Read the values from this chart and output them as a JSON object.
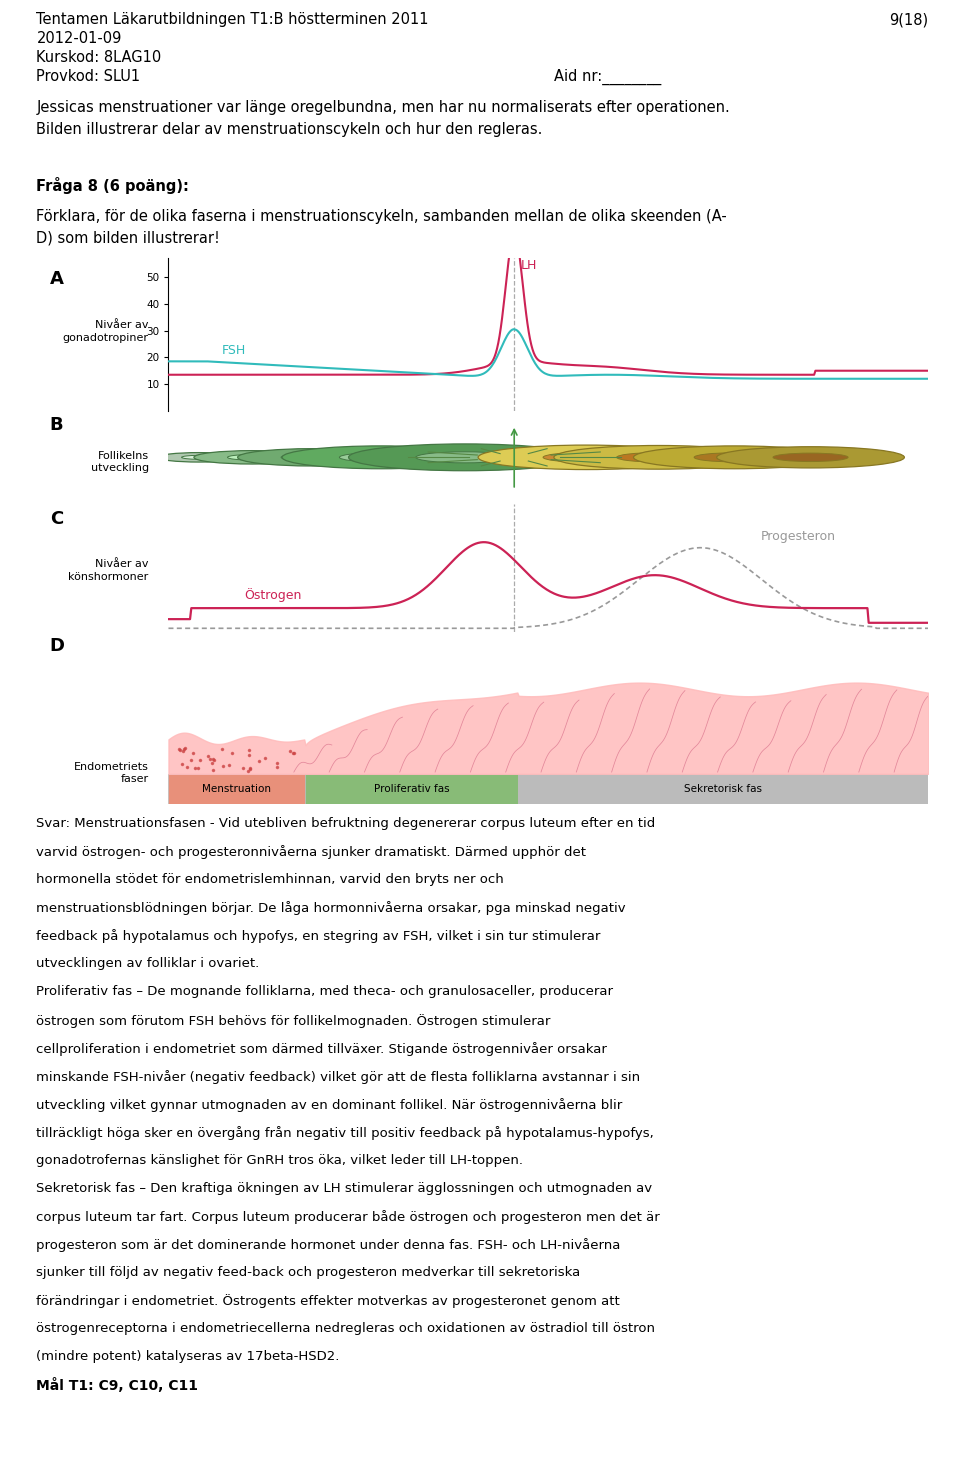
{
  "header_line1": "Tentamen Läkarutbildningen T1:B höstterminen 2011",
  "header_right": "9(18)",
  "header_line2": "2012-01-09",
  "header_line3": "Kurskod: 8LAG10",
  "header_line4": "Provkod: SLU1",
  "header_aid": "Aid nr:________",
  "intro_text": "Jessicas menstruationer var länge oregelbundna, men har nu normaliserats efter operationen.\nBilden illustrerar delar av menstruationscykeln och hur den regleras.",
  "fraga_bold": "Fråga 8 (6 poäng):",
  "fraga_text": "Förklara, för de olika faserna i menstruationscykeln, sambanden mellan de olika skeenden (A-\nD) som bilden illustrerar!",
  "svar_lines": [
    "Svar: Menstruationsfasen - Vid utebliven befruktning degenererar corpus luteum efter en tid",
    "varvid östrogen- och progesteronnivåerna sjunker dramatiskt. Därmed upphör det",
    "hormonella stödet för endometrislemhinnan, varvid den bryts ner och",
    "menstruationsblödningen börjar. De låga hormonnivåerna orsakar, pga minskad negativ",
    "feedback på hypotalamus och hypofys, en stegring av FSH, vilket i sin tur stimulerar",
    "utvecklingen av folliklar i ovariet.",
    "Proliferativ fas – De mognande folliklarna, med theca- och granulosaceller, producerar",
    "östrogen som förutom FSH behövs för follikelmognaden. Östrogen stimulerar",
    "cellproliferation i endometriet som därmed tillväxer. Stigande östrogennivåer orsakar",
    "minskande FSH-nivåer (negativ feedback) vilket gör att de flesta folliklarna avstannar i sin",
    "utveckling vilket gynnar utmognaden av en dominant follikel. När östrogennivåerna blir",
    "tillräckligt höga sker en övergång från negativ till positiv feedback på hypotalamus-hypofys,",
    "gonadotrofernas känslighet för GnRH tros öka, vilket leder till LH-toppen.",
    "Sekretorisk fas – Den kraftiga ökningen av LH stimulerar ägglossningen och utmognaden av",
    "corpus luteum tar fart. Corpus luteum producerar både östrogen och progesteron men det är",
    "progesteron som är det dominerande hormonet under denna fas. FSH- och LH-nivåerna",
    "sjunker till följd av negativ feed-back och progesteron medverkar till sekretoriska",
    "förändringar i endometriet. Östrogents effekter motverkas av progesteronet genom att",
    "östrogenreceptorna i endometriecellerna nedregleras och oxidationen av östradiol till östron",
    "(mindre potent) katalyseras av 17beta-HSD2."
  ],
  "mal_text": "Mål T1: C9, C10, C11",
  "label_A": "A",
  "label_B": "B",
  "label_C": "C",
  "label_D": "D",
  "section_A_label1": "Nivåer av",
  "section_A_label2": "gonadotropiner",
  "section_B_label1": "Follikelns",
  "section_B_label2": "utveckling",
  "section_C_label1": "Nivåer av",
  "section_C_label2": "könshormoner",
  "section_D_label1": "Endometriets",
  "section_D_label2": "faser",
  "phase_menstruation": "Menstruation",
  "phase_proliferativ": "Proliferativ fas",
  "phase_sekretorisk": "Sekretorisk fas",
  "label_LH": "LH",
  "label_FSH": "FSH",
  "label_Progesteron": "Progesteron",
  "label_Ostrogen": "Östrogen",
  "panel_bg": "#FAFAE8",
  "fsh_color": "#30BBBB",
  "lh_color": "#CC2255",
  "estrogen_color": "#CC2255",
  "progesteron_color": "#999999",
  "menstruation_color": "#E8907A",
  "proliferativ_color": "#88BB77",
  "sekretorisk_color": "#BBBBBB",
  "fig_width": 9.6,
  "fig_height": 14.75,
  "dpi": 100
}
